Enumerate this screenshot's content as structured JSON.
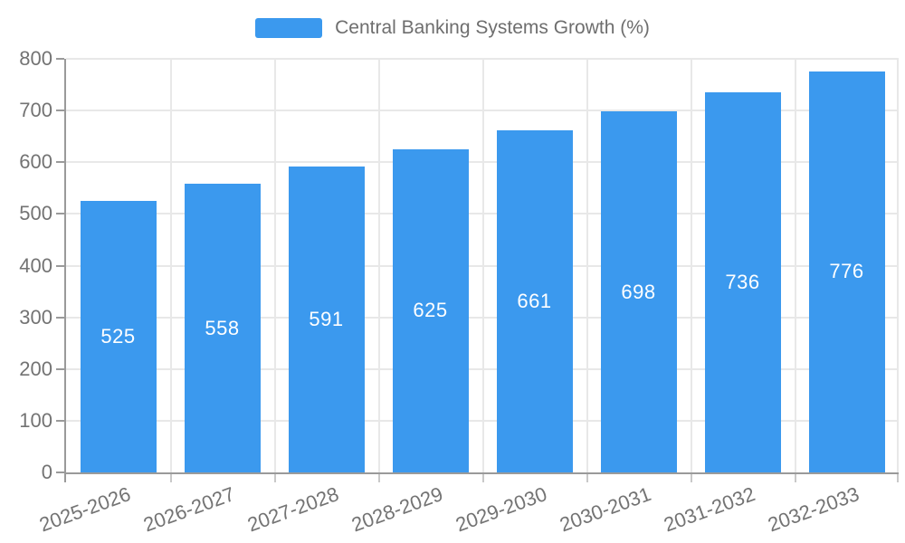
{
  "chart_data": {
    "type": "bar",
    "title": "",
    "legend_label": "Central Banking Systems Growth (%)",
    "legend_position": "top",
    "categories": [
      "2025-2026",
      "2026-2027",
      "2027-2028",
      "2028-2029",
      "2029-2030",
      "2030-2031",
      "2031-2032",
      "2032-2033"
    ],
    "values": [
      525,
      558,
      591,
      625,
      661,
      698,
      736,
      776
    ],
    "value_labels": [
      "525",
      "558",
      "591",
      "625",
      "661",
      "698",
      "736",
      "776"
    ],
    "xlabel": "",
    "ylabel": "",
    "ylim": [
      0,
      800
    ],
    "ytick_step": 100,
    "yticks": [
      0,
      100,
      200,
      300,
      400,
      500,
      600,
      700,
      800
    ],
    "grid": true,
    "x_label_rotation_deg": -20,
    "colors": {
      "bar": "#3B99EE",
      "axis": "#9a9a9a",
      "grid": "#e8e8e8",
      "tick": "#c9c9c9",
      "tick_label": "#737373",
      "legend_text": "#6e6e6e",
      "value_label": "#ffffff"
    }
  }
}
